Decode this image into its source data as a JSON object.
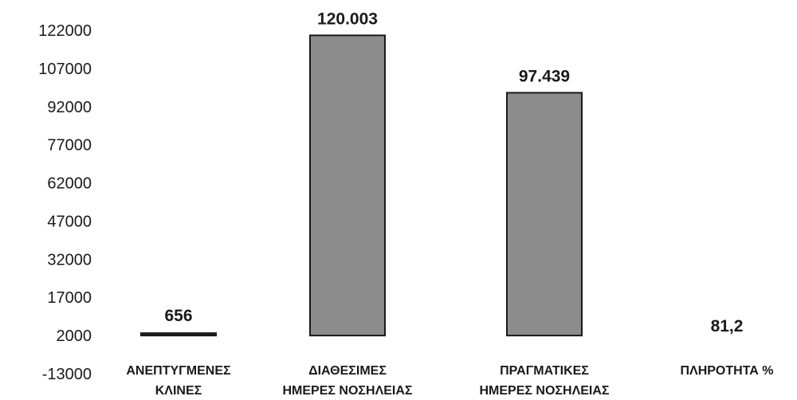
{
  "chart_data": {
    "type": "bar",
    "categories": [
      [
        "ΑΝΕΠΤΥΓΜΕΝΕΣ",
        "ΚΛΙΝΕΣ"
      ],
      [
        "ΔΙΑΘΕΣΙΜΕΣ",
        "ΗΜΕΡΕΣ ΝΟΣΗΛΕΙΑΣ"
      ],
      [
        "ΠΡΑΓΜΑΤΙΚΕΣ",
        "ΗΜΕΡΕΣ ΝΟΣΗΛΕΙΑΣ"
      ],
      [
        "ΠΛΗΡΟΤΗΤΑ %"
      ]
    ],
    "values": [
      656,
      120003,
      97439,
      81.2
    ],
    "value_labels": [
      "656",
      "120.003",
      "97.439",
      "81,2"
    ],
    "y_ticks": [
      -13000,
      2000,
      17000,
      32000,
      47000,
      62000,
      77000,
      92000,
      107000,
      122000
    ],
    "ylim": [
      -13000,
      122000
    ],
    "title": "",
    "xlabel": "",
    "ylabel": "",
    "grid": false,
    "legend": "none",
    "colors": {
      "bar_fill": "#8c8c8c",
      "bar_stroke": "#1a1a1a",
      "text": "#1a1a1a"
    }
  }
}
